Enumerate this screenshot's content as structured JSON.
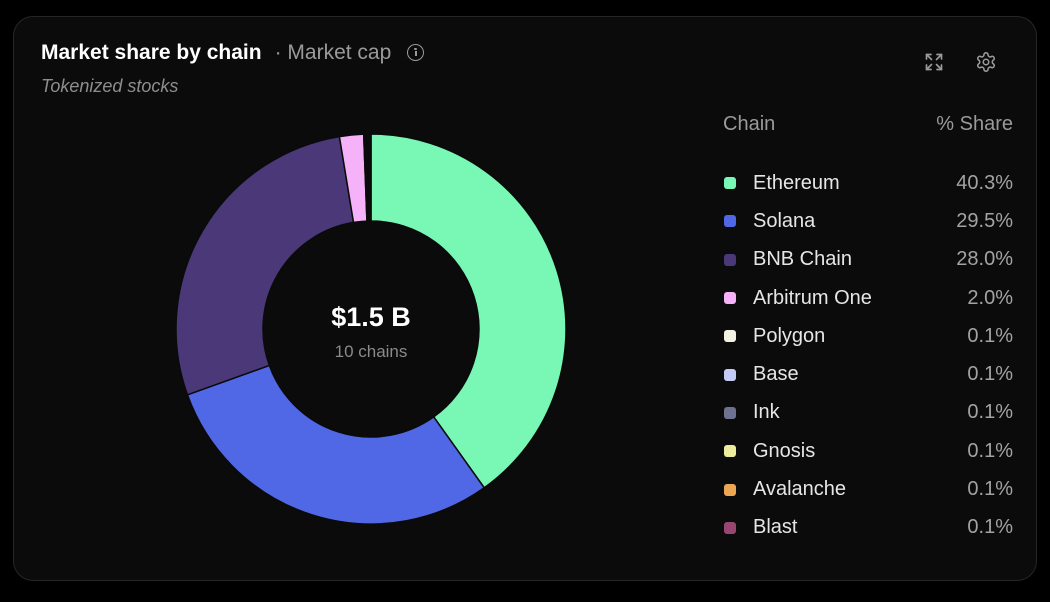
{
  "header": {
    "title": "Market share by chain",
    "metric": "· Market cap",
    "subtitle": "Tokenized stocks"
  },
  "icons": {
    "info": "info-circle-icon",
    "expand": "expand-icon",
    "settings": "gear-icon"
  },
  "center": {
    "value": "$1.5 B",
    "label": "10 chains"
  },
  "legend": {
    "col_chain": "Chain",
    "col_share": "% Share"
  },
  "chart_data": {
    "type": "pie",
    "donut": true,
    "categories": [
      "Ethereum",
      "Solana",
      "BNB Chain",
      "Arbitrum One",
      "Polygon",
      "Base",
      "Ink",
      "Gnosis",
      "Avalanche",
      "Blast"
    ],
    "values": [
      40.3,
      29.5,
      28.0,
      2.0,
      0.1,
      0.1,
      0.1,
      0.1,
      0.1,
      0.1
    ],
    "labels": [
      "40.3%",
      "29.5%",
      "28.0%",
      "2.0%",
      "0.1%",
      "0.1%",
      "0.1%",
      "0.1%",
      "0.1%",
      "0.1%"
    ],
    "colors": [
      "#78f7b5",
      "#5068e6",
      "#4a3878",
      "#f5b2f8",
      "#f2f1e4",
      "#c3cbf5",
      "#6c7290",
      "#ecec9c",
      "#eaa652",
      "#97466f"
    ],
    "legend_position": "right"
  }
}
